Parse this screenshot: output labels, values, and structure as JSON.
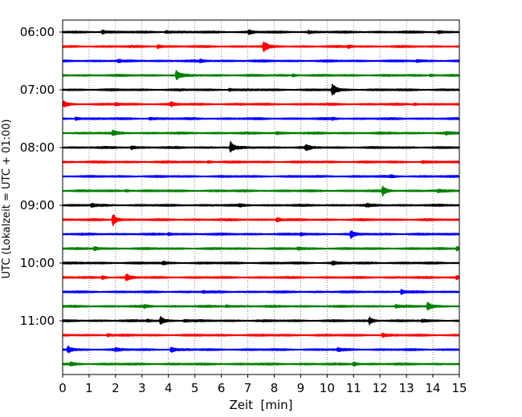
{
  "chart_data": {
    "type": "line",
    "subtype": "helicorder",
    "xlabel": "Zeit  [min]",
    "ylabel": "UTC (Lokalzeit = UTC + 01:00)",
    "xlim": [
      0,
      15
    ],
    "x_ticks": [
      0,
      1,
      2,
      3,
      4,
      5,
      6,
      7,
      8,
      9,
      10,
      11,
      12,
      13,
      14,
      15
    ],
    "x_tick_labels": [
      "0",
      "1",
      "2",
      "3",
      "4",
      "5",
      "6",
      "7",
      "8",
      "9",
      "10",
      "11",
      "12",
      "13",
      "14",
      "15"
    ],
    "y_tick_labels": [
      "06:00",
      "07:00",
      "08:00",
      "09:00",
      "10:00",
      "11:00"
    ],
    "trace_minutes": 15,
    "grid": "vertical dotted lines at each minute",
    "colors": [
      "#000000",
      "#ff0000",
      "#0000ff",
      "#008000"
    ],
    "traces": [
      {
        "start": "06:00",
        "color": "#000000",
        "events": [
          {
            "t": 1.5,
            "amp": 0.3
          },
          {
            "t": 3.9,
            "amp": 0.25
          },
          {
            "t": 7.05,
            "amp": 0.35
          },
          {
            "t": 9.3,
            "amp": 0.2
          },
          {
            "t": 14.2,
            "amp": 0.25
          }
        ]
      },
      {
        "start": "06:15",
        "color": "#ff0000",
        "events": [
          {
            "t": 3.6,
            "amp": 0.35
          },
          {
            "t": 7.6,
            "amp": 1.0
          },
          {
            "t": 10.8,
            "amp": 0.25
          }
        ]
      },
      {
        "start": "06:30",
        "color": "#0000ff",
        "events": [
          {
            "t": 2.1,
            "amp": 0.2
          },
          {
            "t": 5.2,
            "amp": 0.2
          },
          {
            "t": 13.4,
            "amp": 0.2
          }
        ]
      },
      {
        "start": "06:45",
        "color": "#008000",
        "events": [
          {
            "t": 4.3,
            "amp": 0.9
          },
          {
            "t": 8.7,
            "amp": 0.2
          },
          {
            "t": 13.9,
            "amp": 0.2
          }
        ]
      },
      {
        "start": "07:00",
        "color": "#000000",
        "events": [
          {
            "t": 10.2,
            "amp": 1.1
          },
          {
            "t": 6.3,
            "amp": 0.2
          }
        ]
      },
      {
        "start": "07:15",
        "color": "#ff0000",
        "events": [
          {
            "t": 0.05,
            "amp": 0.5
          },
          {
            "t": 2.0,
            "amp": 0.25
          },
          {
            "t": 4.1,
            "amp": 0.35
          },
          {
            "t": 13.3,
            "amp": 0.2
          }
        ]
      },
      {
        "start": "07:30",
        "color": "#0000ff",
        "events": [
          {
            "t": 0.5,
            "amp": 0.3
          },
          {
            "t": 3.3,
            "amp": 0.2
          },
          {
            "t": 10.2,
            "amp": 0.2
          }
        ]
      },
      {
        "start": "07:45",
        "color": "#008000",
        "events": [
          {
            "t": 1.9,
            "amp": 0.4
          },
          {
            "t": 8.1,
            "amp": 0.2
          },
          {
            "t": 14.5,
            "amp": 0.2
          }
        ]
      },
      {
        "start": "08:00",
        "color": "#000000",
        "events": [
          {
            "t": 2.6,
            "amp": 0.3
          },
          {
            "t": 6.35,
            "amp": 1.0
          },
          {
            "t": 9.2,
            "amp": 0.5
          }
        ]
      },
      {
        "start": "08:15",
        "color": "#ff0000",
        "events": [
          {
            "t": 5.5,
            "amp": 0.2
          },
          {
            "t": 13.6,
            "amp": 0.2
          }
        ]
      },
      {
        "start": "08:30",
        "color": "#0000ff",
        "events": [
          {
            "t": 12.4,
            "amp": 0.2
          }
        ]
      },
      {
        "start": "08:45",
        "color": "#008000",
        "events": [
          {
            "t": 2.4,
            "amp": 0.2
          },
          {
            "t": 12.1,
            "amp": 0.8
          },
          {
            "t": 14.2,
            "amp": 0.2
          }
        ]
      },
      {
        "start": "09:00",
        "color": "#000000",
        "events": [
          {
            "t": 1.1,
            "amp": 0.3
          },
          {
            "t": 6.7,
            "amp": 0.2
          },
          {
            "t": 11.5,
            "amp": 0.25
          }
        ]
      },
      {
        "start": "09:15",
        "color": "#ff0000",
        "events": [
          {
            "t": 1.9,
            "amp": 1.1
          },
          {
            "t": 8.1,
            "amp": 0.4
          }
        ]
      },
      {
        "start": "09:30",
        "color": "#0000ff",
        "events": [
          {
            "t": 4.0,
            "amp": 0.2
          },
          {
            "t": 9.0,
            "amp": 0.25
          },
          {
            "t": 10.9,
            "amp": 0.6
          }
        ]
      },
      {
        "start": "09:45",
        "color": "#008000",
        "events": [
          {
            "t": 1.2,
            "amp": 0.3
          },
          {
            "t": 8.9,
            "amp": 0.2
          },
          {
            "t": 14.9,
            "amp": 0.4
          }
        ]
      },
      {
        "start": "10:00",
        "color": "#000000",
        "events": [
          {
            "t": 3.8,
            "amp": 0.2
          },
          {
            "t": 10.2,
            "amp": 0.3
          }
        ]
      },
      {
        "start": "10:15",
        "color": "#ff0000",
        "events": [
          {
            "t": 1.5,
            "amp": 0.3
          },
          {
            "t": 2.4,
            "amp": 0.6
          },
          {
            "t": 14.9,
            "amp": 0.3
          }
        ]
      },
      {
        "start": "10:30",
        "color": "#0000ff",
        "events": [
          {
            "t": 5.3,
            "amp": 0.2
          },
          {
            "t": 12.8,
            "amp": 0.4
          }
        ]
      },
      {
        "start": "10:45",
        "color": "#008000",
        "events": [
          {
            "t": 3.1,
            "amp": 0.2
          },
          {
            "t": 6.2,
            "amp": 0.2
          },
          {
            "t": 12.6,
            "amp": 0.25
          },
          {
            "t": 13.8,
            "amp": 0.8
          }
        ]
      },
      {
        "start": "11:00",
        "color": "#000000",
        "events": [
          {
            "t": 3.2,
            "amp": 0.2
          },
          {
            "t": 3.7,
            "amp": 0.7
          },
          {
            "t": 4.6,
            "amp": 0.2
          },
          {
            "t": 11.6,
            "amp": 0.6
          },
          {
            "t": 13.6,
            "amp": 0.2
          }
        ]
      },
      {
        "start": "11:15",
        "color": "#ff0000",
        "events": [
          {
            "t": 1.7,
            "amp": 0.25
          },
          {
            "t": 12.1,
            "amp": 0.3
          }
        ]
      },
      {
        "start": "11:30",
        "color": "#0000ff",
        "events": [
          {
            "t": 0.2,
            "amp": 0.6
          },
          {
            "t": 2.0,
            "amp": 0.3
          },
          {
            "t": 4.1,
            "amp": 0.5
          },
          {
            "t": 10.4,
            "amp": 0.3
          }
        ]
      },
      {
        "start": "11:45",
        "color": "#008000",
        "events": [
          {
            "t": 0.3,
            "amp": 0.3
          },
          {
            "t": 11.0,
            "amp": 0.35
          }
        ]
      }
    ]
  }
}
